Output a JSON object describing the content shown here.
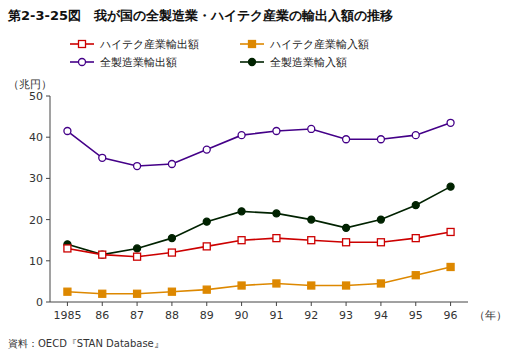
{
  "chart_data": {
    "type": "line",
    "title": "第2-3-25図　我が国の全製造業・ハイテク産業の輸出入額の推移",
    "y_label": "（兆円）",
    "x_label": "（年）",
    "annotations": [
      "資料：OECD『STAN Database』"
    ],
    "categories": [
      "1985",
      "86",
      "87",
      "88",
      "89",
      "90",
      "91",
      "92",
      "93",
      "94",
      "95",
      "96"
    ],
    "series": [
      {
        "name": "ハイテク産業輸出額",
        "color": "#cc0000",
        "marker": "open-square",
        "values": [
          13.0,
          11.5,
          11.0,
          12.0,
          13.5,
          15.0,
          15.5,
          15.0,
          14.5,
          14.5,
          15.5,
          17.0
        ]
      },
      {
        "name": "ハイテク産業輸入額",
        "color": "#dd8800",
        "marker": "square",
        "values": [
          2.5,
          2.0,
          2.0,
          2.5,
          3.0,
          4.0,
          4.5,
          4.0,
          4.0,
          4.5,
          6.5,
          8.5
        ]
      },
      {
        "name": "全製造業輸出額",
        "color": "#440088",
        "marker": "open-circle",
        "values": [
          41.5,
          35.0,
          33.0,
          33.5,
          37.0,
          40.5,
          41.5,
          42.0,
          39.5,
          39.5,
          40.5,
          43.5
        ]
      },
      {
        "name": "全製造業輸入額",
        "color": "#002200",
        "marker": "circle",
        "values": [
          14.0,
          11.5,
          13.0,
          15.5,
          19.5,
          22.0,
          21.5,
          20.0,
          18.0,
          20.0,
          23.5,
          28.0
        ]
      }
    ],
    "ylim": [
      0,
      50
    ],
    "yticks": [
      0,
      10,
      20,
      30,
      40,
      50
    ],
    "grid": false,
    "legend": "top"
  }
}
